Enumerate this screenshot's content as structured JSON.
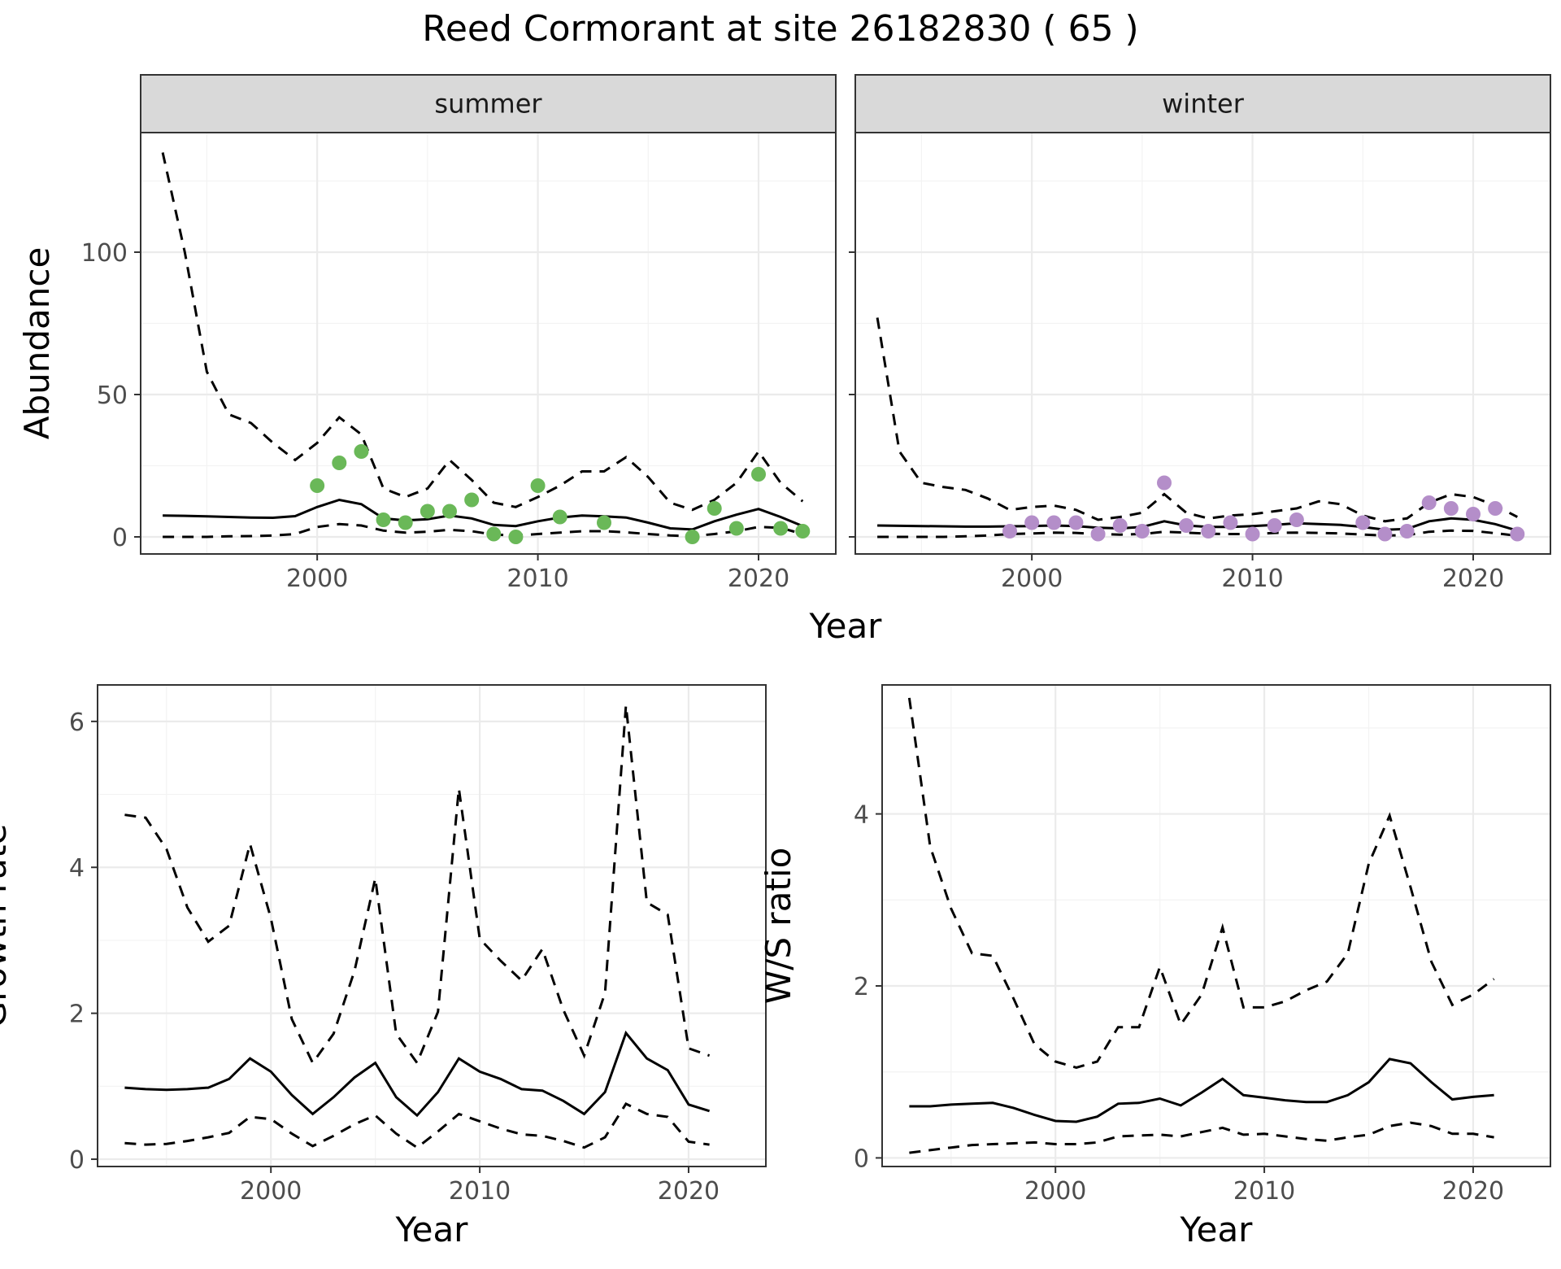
{
  "title": "Reed Cormorant at site 26182830 ( 65 )",
  "colors": {
    "summer_points": "#6ab858",
    "winter_points": "#b48ec9",
    "lines": "#000000",
    "strip": "#d9d9d9"
  },
  "chart_data": [
    {
      "type": "line",
      "panel": "summer",
      "strip_label": "summer",
      "xlabel": "Year",
      "ylabel": "Abundance",
      "xlim": [
        1992,
        2023.5
      ],
      "ylim": [
        -6,
        142
      ],
      "x_ticks": [
        2000,
        2010,
        2020
      ],
      "y_ticks": [
        0,
        50,
        100
      ],
      "grid": true,
      "series": [
        {
          "role": "estimate",
          "style": "solid",
          "x": [
            1993,
            1994,
            1995,
            1996,
            1997,
            1998,
            1999,
            2000,
            2001,
            2002,
            2003,
            2004,
            2005,
            2006,
            2007,
            2008,
            2009,
            2010,
            2011,
            2012,
            2013,
            2014,
            2015,
            2016,
            2017,
            2018,
            2019,
            2020,
            2021,
            2022
          ],
          "y": [
            7.5,
            7.4,
            7.2,
            7,
            6.8,
            6.7,
            7.3,
            10.5,
            13,
            11.5,
            6.5,
            5.8,
            6.2,
            7.5,
            6.5,
            4.2,
            3.8,
            5.5,
            6.8,
            7.5,
            7.2,
            6.8,
            5,
            3,
            2.6,
            5.5,
            7.8,
            9.8,
            7,
            3.8
          ]
        },
        {
          "role": "upper",
          "style": "dashed",
          "x": [
            1993,
            1994,
            1995,
            1996,
            1997,
            1998,
            1999,
            2000,
            2001,
            2002,
            2003,
            2004,
            2005,
            2006,
            2007,
            2008,
            2009,
            2010,
            2011,
            2012,
            2013,
            2014,
            2015,
            2016,
            2017,
            2018,
            2019,
            2020,
            2021,
            2022
          ],
          "y": [
            135,
            100,
            58,
            43,
            40,
            33,
            27,
            33,
            42,
            36,
            17,
            14,
            17,
            27,
            20,
            12,
            10.5,
            14,
            18,
            23,
            23,
            28,
            21,
            12,
            9.5,
            13,
            19,
            30,
            19,
            12.5
          ]
        },
        {
          "role": "lower",
          "style": "dashed",
          "x": [
            1993,
            1994,
            1995,
            1996,
            1997,
            1998,
            1999,
            2000,
            2001,
            2002,
            2003,
            2004,
            2005,
            2006,
            2007,
            2008,
            2009,
            2010,
            2011,
            2012,
            2013,
            2014,
            2015,
            2016,
            2017,
            2018,
            2019,
            2020,
            2021,
            2022
          ],
          "y": [
            0,
            0,
            0,
            0.2,
            0.3,
            0.5,
            1,
            3.5,
            4.5,
            4,
            2.2,
            1.5,
            1.8,
            2.5,
            2,
            0.8,
            0.5,
            1,
            1.5,
            2,
            2,
            1.6,
            1,
            0.5,
            0.3,
            1,
            2,
            3.5,
            3.2,
            1
          ]
        },
        {
          "role": "observed",
          "style": "points",
          "x": [
            2000,
            2001,
            2002,
            2003,
            2004,
            2005,
            2006,
            2007,
            2008,
            2009,
            2010,
            2011,
            2013,
            2017,
            2018,
            2019,
            2020,
            2021,
            2022
          ],
          "y": [
            18,
            26,
            30,
            6,
            5,
            9,
            9,
            13,
            1,
            0,
            18,
            7,
            5,
            0,
            10,
            3,
            22,
            3,
            2
          ]
        }
      ]
    },
    {
      "type": "line",
      "panel": "winter",
      "strip_label": "winter",
      "xlabel": "Year",
      "ylabel": "Abundance",
      "xlim": [
        1992,
        2023.5
      ],
      "ylim": [
        -6,
        142
      ],
      "x_ticks": [
        2000,
        2010,
        2020
      ],
      "y_ticks": [
        0,
        50,
        100
      ],
      "grid": true,
      "series": [
        {
          "role": "estimate",
          "style": "solid",
          "x": [
            1993,
            1994,
            1995,
            1996,
            1997,
            1998,
            1999,
            2000,
            2001,
            2002,
            2003,
            2004,
            2005,
            2006,
            2007,
            2008,
            2009,
            2010,
            2011,
            2012,
            2013,
            2014,
            2015,
            2016,
            2017,
            2018,
            2019,
            2020,
            2021,
            2022
          ],
          "y": [
            4,
            3.9,
            3.8,
            3.7,
            3.6,
            3.6,
            3.7,
            3.8,
            4,
            3.8,
            3.2,
            3,
            3.5,
            5.5,
            4,
            3.5,
            3.5,
            3.8,
            4.2,
            4.8,
            4.5,
            4.2,
            3.5,
            2.5,
            2.8,
            5.5,
            6.5,
            6,
            4.5,
            2.2
          ]
        },
        {
          "role": "upper",
          "style": "dashed",
          "x": [
            1993,
            1994,
            1995,
            1996,
            1997,
            1998,
            1999,
            2000,
            2001,
            2002,
            2003,
            2004,
            2005,
            2006,
            2007,
            2008,
            2009,
            2010,
            2011,
            2012,
            2013,
            2014,
            2015,
            2016,
            2017,
            2018,
            2019,
            2020,
            2021,
            2022
          ],
          "y": [
            77,
            30,
            19,
            17.5,
            16.5,
            13.5,
            9.5,
            10.5,
            11,
            9.5,
            6,
            7,
            8.5,
            15,
            8.5,
            6.5,
            7.5,
            8,
            9,
            10,
            12.5,
            11.5,
            7.5,
            5.5,
            6.5,
            12,
            15,
            14,
            11,
            7
          ]
        },
        {
          "role": "lower",
          "style": "dashed",
          "x": [
            1993,
            1994,
            1995,
            1996,
            1997,
            1998,
            1999,
            2000,
            2001,
            2002,
            2003,
            2004,
            2005,
            2006,
            2007,
            2008,
            2009,
            2010,
            2011,
            2012,
            2013,
            2014,
            2015,
            2016,
            2017,
            2018,
            2019,
            2020,
            2021,
            2022
          ],
          "y": [
            0,
            0,
            0,
            0,
            0.2,
            0.5,
            1,
            1.2,
            1.5,
            1.4,
            1,
            0.8,
            1,
            1.8,
            1.5,
            1.1,
            1,
            1,
            1.4,
            1.5,
            1.4,
            1.2,
            0.8,
            0.5,
            0.6,
            1.8,
            2.2,
            2.1,
            1.3,
            0.4
          ]
        },
        {
          "role": "observed",
          "style": "points",
          "x": [
            1999,
            2000,
            2001,
            2002,
            2003,
            2004,
            2005,
            2006,
            2007,
            2008,
            2009,
            2010,
            2011,
            2012,
            2015,
            2016,
            2017,
            2018,
            2019,
            2020,
            2021,
            2022
          ],
          "y": [
            2,
            5,
            5,
            5,
            1,
            4,
            2,
            19,
            4,
            2,
            5,
            1,
            4,
            6,
            5,
            1,
            2,
            12,
            10,
            8,
            10,
            1
          ]
        }
      ]
    },
    {
      "type": "line",
      "panel": "growth",
      "xlabel": "Year",
      "ylabel": "Growth rate",
      "xlim": [
        1991.7,
        2023.7
      ],
      "ylim": [
        -0.1,
        6.5
      ],
      "x_ticks": [
        2000,
        2010,
        2020
      ],
      "y_ticks": [
        0,
        2,
        4,
        6
      ],
      "grid": true,
      "series": [
        {
          "role": "estimate",
          "style": "solid",
          "x": [
            1993,
            1994,
            1995,
            1996,
            1997,
            1998,
            1999,
            2000,
            2001,
            2002,
            2003,
            2004,
            2005,
            2006,
            2007,
            2008,
            2009,
            2010,
            2011,
            2012,
            2013,
            2014,
            2015,
            2016,
            2017,
            2018,
            2019,
            2020,
            2021
          ],
          "y": [
            0.98,
            0.96,
            0.95,
            0.96,
            0.98,
            1.1,
            1.38,
            1.2,
            0.88,
            0.62,
            0.85,
            1.12,
            1.32,
            0.85,
            0.6,
            0.92,
            1.38,
            1.2,
            1.1,
            0.96,
            0.94,
            0.8,
            0.62,
            0.92,
            1.73,
            1.38,
            1.22,
            0.75,
            0.66
          ]
        },
        {
          "role": "upper",
          "style": "dashed",
          "x": [
            1993,
            1994,
            1995,
            1996,
            1997,
            1998,
            1999,
            2000,
            2001,
            2002,
            2003,
            2004,
            2005,
            2006,
            2007,
            2008,
            2009,
            2010,
            2011,
            2012,
            2013,
            2014,
            2015,
            2016,
            2017,
            2018,
            2019,
            2020,
            2021
          ],
          "y": [
            4.72,
            4.68,
            4.25,
            3.45,
            2.98,
            3.2,
            4.32,
            3.3,
            1.92,
            1.32,
            1.72,
            2.58,
            3.85,
            1.72,
            1.32,
            2.02,
            5.08,
            3.02,
            2.72,
            2.45,
            2.88,
            2.05,
            1.42,
            2.28,
            6.22,
            3.52,
            3.35,
            1.52,
            1.42
          ]
        },
        {
          "role": "lower",
          "style": "dashed",
          "x": [
            1993,
            1994,
            1995,
            1996,
            1997,
            1998,
            1999,
            2000,
            2001,
            2002,
            2003,
            2004,
            2005,
            2006,
            2007,
            2008,
            2009,
            2010,
            2011,
            2012,
            2013,
            2014,
            2015,
            2016,
            2017,
            2018,
            2019,
            2020,
            2021
          ],
          "y": [
            0.22,
            0.2,
            0.21,
            0.25,
            0.3,
            0.36,
            0.58,
            0.55,
            0.35,
            0.18,
            0.32,
            0.48,
            0.6,
            0.35,
            0.16,
            0.38,
            0.62,
            0.52,
            0.42,
            0.34,
            0.32,
            0.25,
            0.16,
            0.3,
            0.76,
            0.62,
            0.58,
            0.24,
            0.2
          ]
        }
      ]
    },
    {
      "type": "line",
      "panel": "ratio",
      "xlabel": "Year",
      "ylabel": "W/S ratio",
      "xlim": [
        1991.7,
        2023.7
      ],
      "ylim": [
        -0.1,
        5.5
      ],
      "x_ticks": [
        2000,
        2010,
        2020
      ],
      "y_ticks": [
        0,
        2,
        4
      ],
      "grid": true,
      "series": [
        {
          "role": "estimate",
          "style": "solid",
          "x": [
            1993,
            1994,
            1995,
            1996,
            1997,
            1998,
            1999,
            2000,
            2001,
            2002,
            2003,
            2004,
            2005,
            2006,
            2007,
            2008,
            2009,
            2010,
            2011,
            2012,
            2013,
            2014,
            2015,
            2016,
            2017,
            2018,
            2019,
            2020,
            2021
          ],
          "y": [
            0.6,
            0.6,
            0.62,
            0.63,
            0.64,
            0.58,
            0.5,
            0.43,
            0.42,
            0.48,
            0.63,
            0.64,
            0.69,
            0.61,
            0.76,
            0.92,
            0.73,
            0.7,
            0.67,
            0.65,
            0.65,
            0.73,
            0.88,
            1.15,
            1.1,
            0.88,
            0.68,
            0.71,
            0.73
          ]
        },
        {
          "role": "upper",
          "style": "dashed",
          "x": [
            1993,
            1994,
            1995,
            1996,
            1997,
            1998,
            1999,
            2000,
            2001,
            2002,
            2003,
            2004,
            2005,
            2006,
            2007,
            2008,
            2009,
            2010,
            2011,
            2012,
            2013,
            2014,
            2015,
            2016,
            2017,
            2018,
            2019,
            2020,
            2021
          ],
          "y": [
            5.35,
            3.62,
            2.9,
            2.38,
            2.35,
            1.85,
            1.32,
            1.12,
            1.05,
            1.12,
            1.52,
            1.52,
            2.22,
            1.55,
            1.9,
            2.68,
            1.75,
            1.75,
            1.82,
            1.95,
            2.05,
            2.38,
            3.42,
            3.98,
            3.15,
            2.28,
            1.78,
            1.9,
            2.08
          ]
        },
        {
          "role": "lower",
          "style": "dashed",
          "x": [
            1993,
            1994,
            1995,
            1996,
            1997,
            1998,
            1999,
            2000,
            2001,
            2002,
            2003,
            2004,
            2005,
            2006,
            2007,
            2008,
            2009,
            2010,
            2011,
            2012,
            2013,
            2014,
            2015,
            2016,
            2017,
            2018,
            2019,
            2020,
            2021
          ],
          "y": [
            0.06,
            0.09,
            0.12,
            0.15,
            0.16,
            0.17,
            0.18,
            0.16,
            0.16,
            0.18,
            0.25,
            0.26,
            0.27,
            0.25,
            0.3,
            0.35,
            0.27,
            0.28,
            0.25,
            0.22,
            0.2,
            0.24,
            0.27,
            0.37,
            0.41,
            0.37,
            0.28,
            0.28,
            0.24
          ]
        }
      ]
    }
  ]
}
